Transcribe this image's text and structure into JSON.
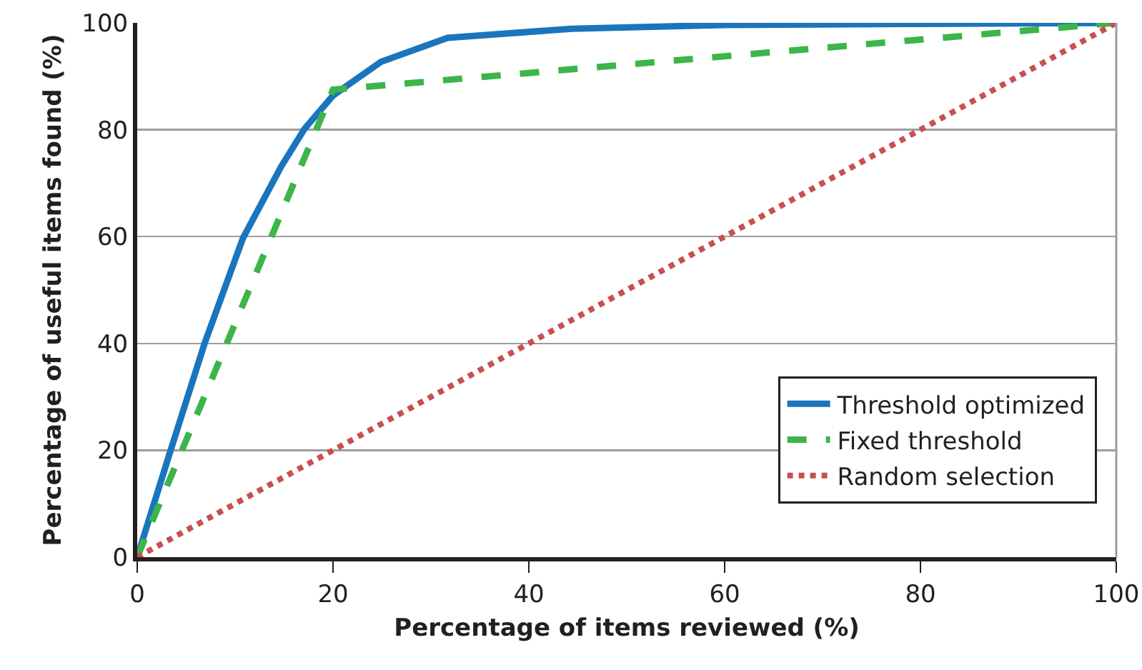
{
  "chart_data": {
    "type": "line",
    "xlabel": "Percentage of items reviewed (%)",
    "ylabel": "Percentage of useful items found (%)",
    "xlim": [
      0,
      100
    ],
    "xticks": [
      0,
      20,
      40,
      60,
      80,
      100
    ],
    "ylim": [
      0,
      100
    ],
    "yticks": [
      0,
      20,
      40,
      60,
      80,
      100
    ],
    "grid": "y",
    "legend": "bottom right",
    "marker": "none",
    "series": [
      {
        "name": "Threshold optimized",
        "color": "#1a75bc",
        "line_style": "solid",
        "x": [
          0,
          3.5,
          6.9,
          10.8,
          14.7,
          17.1,
          20,
          24.9,
          31.7,
          44.4,
          60,
          80,
          100
        ],
        "values": [
          0,
          20.5,
          40.1,
          59.7,
          73.1,
          80.2,
          86.4,
          92.7,
          97.2,
          98.9,
          99.6,
          99.8,
          100
        ]
      },
      {
        "name": "Fixed threshold",
        "color": "#3cb54a",
        "line_style": "dashed",
        "x": [
          0,
          20,
          100
        ],
        "values": [
          0,
          87.5,
          100
        ]
      },
      {
        "name": "Random selection",
        "color": "#c8504e",
        "line_style": "dotted",
        "x": [
          0,
          100
        ],
        "values": [
          0,
          100
        ]
      }
    ]
  }
}
